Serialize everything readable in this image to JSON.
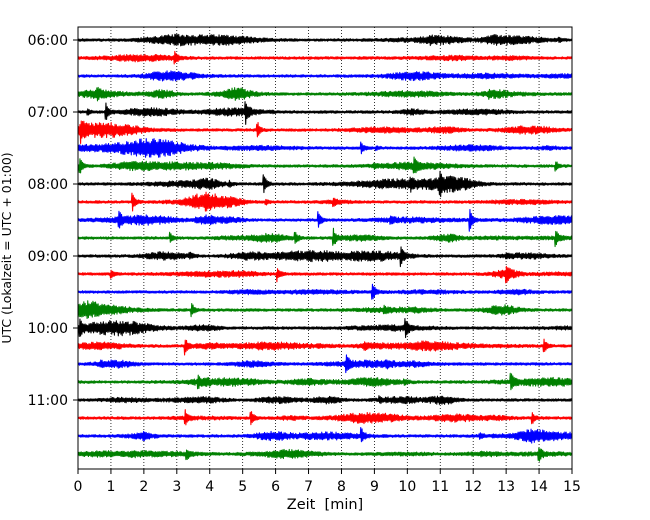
{
  "chart_data": {
    "type": "line",
    "title": "",
    "xlabel": "Zeit  [min]",
    "ylabel": "UTC (Lokalzeit = UTC + 01:00)",
    "xlim": [
      0,
      15
    ],
    "x_ticks": [
      0,
      1,
      2,
      3,
      4,
      5,
      6,
      7,
      8,
      9,
      10,
      11,
      12,
      13,
      14,
      15
    ],
    "x_tick_labels": [
      "0",
      "1",
      "2",
      "3",
      "4",
      "5",
      "6",
      "7",
      "8",
      "9",
      "10",
      "11",
      "12",
      "13",
      "14",
      "15"
    ],
    "y_tick_labels": [
      "06:00",
      "07:00",
      "08:00",
      "09:00",
      "10:00",
      "11:00"
    ],
    "grid_x": true,
    "grid_style": "dotted",
    "trace_colors": [
      "#000000",
      "#ff0000",
      "#0000ff",
      "#008000"
    ],
    "traces": [
      {
        "start": "06:00",
        "color": "#000000",
        "events": [
          {
            "x": 14.6,
            "amp": 0.12
          },
          {
            "x": 10.7,
            "amp": 0.12
          }
        ]
      },
      {
        "start": "06:15",
        "color": "#ff0000",
        "events": [
          {
            "x": 2.95,
            "amp": 0.3
          }
        ]
      },
      {
        "start": "06:30",
        "color": "#0000ff",
        "events": []
      },
      {
        "start": "06:45",
        "color": "#008000",
        "events": [
          {
            "x": 0.6,
            "amp": 0.22
          },
          {
            "x": 12.5,
            "amp": 0.12
          }
        ]
      },
      {
        "start": "07:00",
        "color": "#000000",
        "events": [
          {
            "x": 0.85,
            "amp": 0.55
          },
          {
            "x": 5.1,
            "amp": 0.55
          },
          {
            "x": 0.3,
            "amp": 0.15
          }
        ]
      },
      {
        "start": "07:15",
        "color": "#ff0000",
        "events": [
          {
            "x": 0.1,
            "amp": 0.55
          },
          {
            "x": 5.45,
            "amp": 0.5
          },
          {
            "x": 11.3,
            "amp": 0.12
          }
        ]
      },
      {
        "start": "07:30",
        "color": "#0000ff",
        "events": [
          {
            "x": 8.6,
            "amp": 0.4
          },
          {
            "x": 9.05,
            "amp": 0.15
          }
        ]
      },
      {
        "start": "07:45",
        "color": "#008000",
        "events": [
          {
            "x": 0.05,
            "amp": 0.55
          },
          {
            "x": 10.2,
            "amp": 0.45
          },
          {
            "x": 14.5,
            "amp": 0.3
          },
          {
            "x": 9.0,
            "amp": 0.12
          }
        ]
      },
      {
        "start": "08:00",
        "color": "#000000",
        "events": [
          {
            "x": 5.65,
            "amp": 0.55
          },
          {
            "x": 11.0,
            "amp": 0.55
          },
          {
            "x": 10.1,
            "amp": 0.25
          },
          {
            "x": 4.6,
            "amp": 0.15
          }
        ]
      },
      {
        "start": "08:15",
        "color": "#ff0000",
        "events": [
          {
            "x": 1.65,
            "amp": 0.6
          },
          {
            "x": 7.75,
            "amp": 0.25
          },
          {
            "x": 5.7,
            "amp": 0.15
          }
        ]
      },
      {
        "start": "08:30",
        "color": "#0000ff",
        "events": [
          {
            "x": 1.25,
            "amp": 0.45
          },
          {
            "x": 7.3,
            "amp": 0.5
          },
          {
            "x": 11.9,
            "amp": 0.65
          },
          {
            "x": 9.5,
            "amp": 0.2
          }
        ]
      },
      {
        "start": "08:45",
        "color": "#008000",
        "events": [
          {
            "x": 2.8,
            "amp": 0.35
          },
          {
            "x": 6.6,
            "amp": 0.35
          },
          {
            "x": 7.75,
            "amp": 0.6
          },
          {
            "x": 14.5,
            "amp": 0.5
          }
        ]
      },
      {
        "start": "09:00",
        "color": "#000000",
        "events": [
          {
            "x": 3.4,
            "amp": 0.2
          },
          {
            "x": 9.8,
            "amp": 0.55
          },
          {
            "x": 13.0,
            "amp": 0.15
          }
        ]
      },
      {
        "start": "09:15",
        "color": "#ff0000",
        "events": [
          {
            "x": 1.0,
            "amp": 0.3
          },
          {
            "x": 6.05,
            "amp": 0.45
          },
          {
            "x": 13.0,
            "amp": 0.5
          }
        ]
      },
      {
        "start": "09:30",
        "color": "#0000ff",
        "events": [
          {
            "x": 8.95,
            "amp": 0.55
          }
        ]
      },
      {
        "start": "09:45",
        "color": "#008000",
        "events": [
          {
            "x": 3.45,
            "amp": 0.45
          },
          {
            "x": 9.3,
            "amp": 0.2
          }
        ]
      },
      {
        "start": "10:00",
        "color": "#000000",
        "events": [
          {
            "x": 0.05,
            "amp": 0.5
          },
          {
            "x": 9.95,
            "amp": 0.5
          }
        ]
      },
      {
        "start": "10:15",
        "color": "#ff0000",
        "events": [
          {
            "x": 3.25,
            "amp": 0.55
          },
          {
            "x": 8.7,
            "amp": 0.2
          },
          {
            "x": 14.15,
            "amp": 0.45
          }
        ]
      },
      {
        "start": "10:30",
        "color": "#0000ff",
        "events": [
          {
            "x": 8.15,
            "amp": 0.5
          },
          {
            "x": 9.35,
            "amp": 0.2
          },
          {
            "x": 0.7,
            "amp": 0.12
          }
        ]
      },
      {
        "start": "10:45",
        "color": "#008000",
        "events": [
          {
            "x": 3.65,
            "amp": 0.3
          },
          {
            "x": 13.15,
            "amp": 0.5
          },
          {
            "x": 9.9,
            "amp": 0.15
          }
        ]
      },
      {
        "start": "11:00",
        "color": "#000000",
        "events": [
          {
            "x": 9.15,
            "amp": 0.15
          }
        ]
      },
      {
        "start": "11:15",
        "color": "#ff0000",
        "events": [
          {
            "x": 3.25,
            "amp": 0.5
          },
          {
            "x": 5.25,
            "amp": 0.45
          },
          {
            "x": 13.8,
            "amp": 0.35
          }
        ]
      },
      {
        "start": "11:30",
        "color": "#0000ff",
        "events": [
          {
            "x": 8.6,
            "amp": 0.45
          },
          {
            "x": 2.0,
            "amp": 0.15
          },
          {
            "x": 12.2,
            "amp": 0.15
          }
        ]
      },
      {
        "start": "11:45",
        "color": "#008000",
        "events": [
          {
            "x": 3.3,
            "amp": 0.3
          },
          {
            "x": 14.0,
            "amp": 0.45
          }
        ]
      }
    ]
  }
}
